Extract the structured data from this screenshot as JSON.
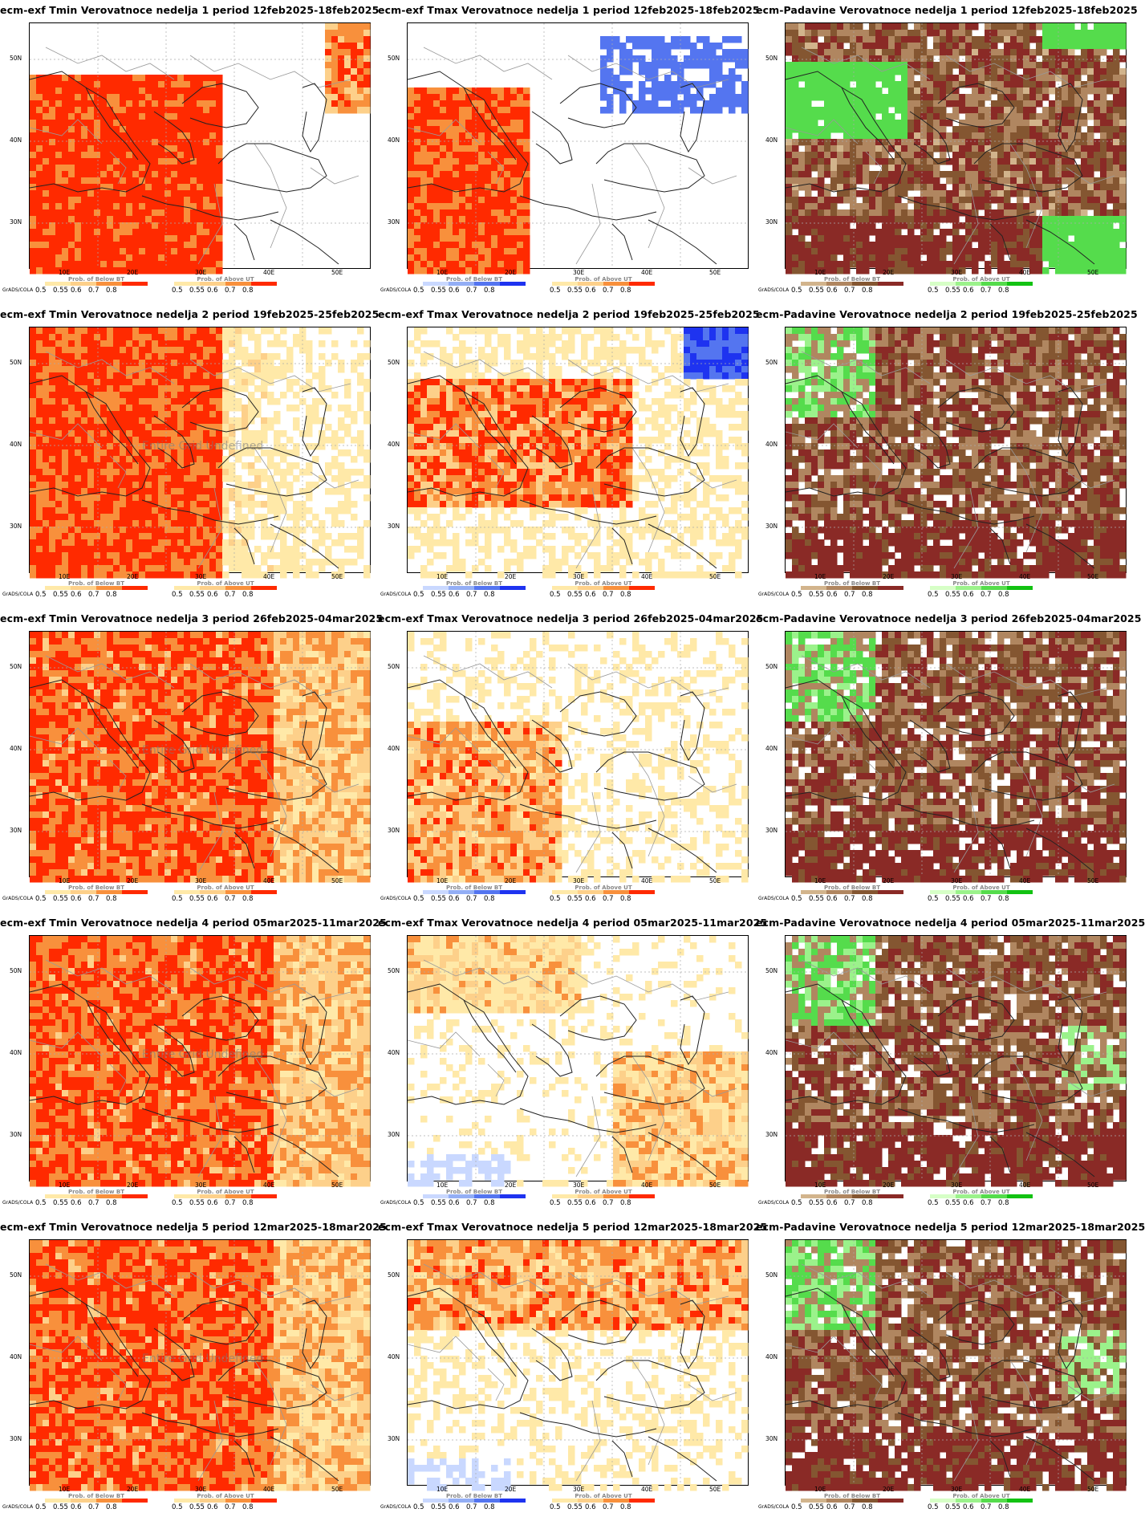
{
  "meta": {
    "colors": {
      "tmin_below": [
        "#c6dbef",
        "#9ecae1",
        "#4292c6",
        "#2140e0"
      ],
      "temp_above": [
        "#ffe9a8",
        "#fdd08a",
        "#f8903c",
        "#ff2a00"
      ],
      "temp_below": [
        "#c9d8ff",
        "#93aef5",
        "#5475f0",
        "#1e33f0"
      ],
      "prec_below": [
        "#d2b48c",
        "#b08660",
        "#845631",
        "#8a2a26"
      ],
      "prec_above": [
        "#d6ffc6",
        "#9bf28b",
        "#55dc4c",
        "#12c212"
      ]
    },
    "lat_labels": [
      "50N",
      "40N",
      "30N"
    ],
    "lon_labels": [
      "10E",
      "20E",
      "30E",
      "40E",
      "50E"
    ],
    "tick_labels": [
      "0.5",
      "0.55",
      "0.6",
      "0.7",
      "0.8"
    ],
    "grads_label": "GrADS/COLA",
    "below_title": "Prob. of Below BT",
    "above_title": "Prob. of Above UT",
    "undefined_text": "Entire Grid Undefined"
  },
  "panels": [
    {
      "title": "ecm-exf Tmin Verovatnoce nedelja 1 period 12feb2025-18feb2025",
      "var": "tmin",
      "week": 1
    },
    {
      "title": "ecm-exf Tmax Verovatnoce nedelja 1 period 12feb2025-18feb2025",
      "var": "tmax",
      "week": 1
    },
    {
      "title": "ecm-Padavine Verovatnoce nedelja 1 period 12feb2025-18feb2025",
      "var": "prec",
      "week": 1
    },
    {
      "title": "ecm-exf Tmin Verovatnoce nedelja 2 period 19feb2025-25feb2025",
      "var": "tmin",
      "week": 2
    },
    {
      "title": "ecm-exf Tmax Verovatnoce nedelja 2 period 19feb2025-25feb2025",
      "var": "tmax",
      "week": 2
    },
    {
      "title": "ecm-Padavine Verovatnoce nedelja 2 period 19feb2025-25feb2025",
      "var": "prec",
      "week": 2
    },
    {
      "title": "ecm-exf Tmin Verovatnoce nedelja 3 period 26feb2025-04mar2025",
      "var": "tmin",
      "week": 3
    },
    {
      "title": "ecm-exf Tmax Verovatnoce nedelja 3 period 26feb2025-04mar2025",
      "var": "tmax",
      "week": 3
    },
    {
      "title": "ecm-Padavine Verovatnoce nedelja 3 period 26feb2025-04mar2025",
      "var": "prec",
      "week": 3
    },
    {
      "title": "ecm-exf Tmin Verovatnoce nedelja 4 period 05mar2025-11mar2025",
      "var": "tmin",
      "week": 4
    },
    {
      "title": "ecm-exf Tmax Verovatnoce nedelja 4 period 05mar2025-11mar2025",
      "var": "tmax",
      "week": 4
    },
    {
      "title": "ecm-Padavine Verovatnoce nedelja 4 period 05mar2025-11mar2025",
      "var": "prec",
      "week": 4
    },
    {
      "title": "ecm-exf Tmin Verovatnoce nedelja 5 period 12mar2025-18mar2025",
      "var": "tmin",
      "week": 5
    },
    {
      "title": "ecm-exf Tmax Verovatnoce nedelja 5 period 12mar2025-18mar2025",
      "var": "tmax",
      "week": 5
    },
    {
      "title": "ecm-Padavine Verovatnoce nedelja 5 period 12mar2025-18mar2025",
      "var": "prec",
      "week": 5
    }
  ]
}
